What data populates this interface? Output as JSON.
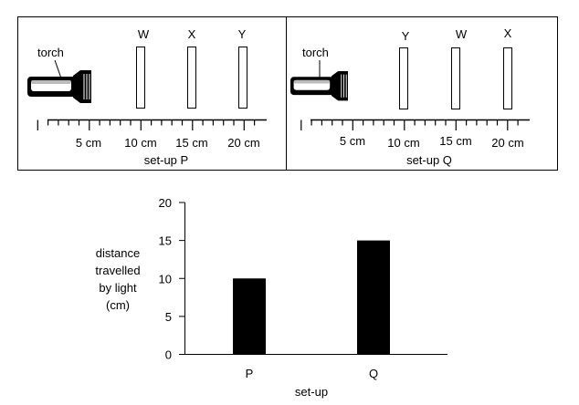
{
  "panels": [
    {
      "id": "P",
      "torch_label": "torch",
      "cards": [
        "W",
        "X",
        "Y"
      ],
      "ruler_labels": [
        "5 cm",
        "10 cm",
        "15 cm",
        "20 cm"
      ],
      "caption": "set-up P"
    },
    {
      "id": "Q",
      "torch_label": "torch",
      "cards": [
        "Y",
        "W",
        "X"
      ],
      "ruler_labels": [
        "5 cm",
        "10 cm",
        "15 cm",
        "20 cm"
      ],
      "caption": "set-up Q"
    }
  ],
  "chart_data": {
    "type": "bar",
    "categories": [
      "P",
      "Q"
    ],
    "values": [
      10,
      15
    ],
    "ylabel_lines": [
      "distance",
      "travelled",
      "by light",
      "(cm)"
    ],
    "xlabel": "set-up",
    "ylim": [
      0,
      20
    ],
    "yticks": [
      "0",
      "5",
      "10",
      "15",
      "20"
    ],
    "bar_color": "#000000",
    "grid": false
  }
}
